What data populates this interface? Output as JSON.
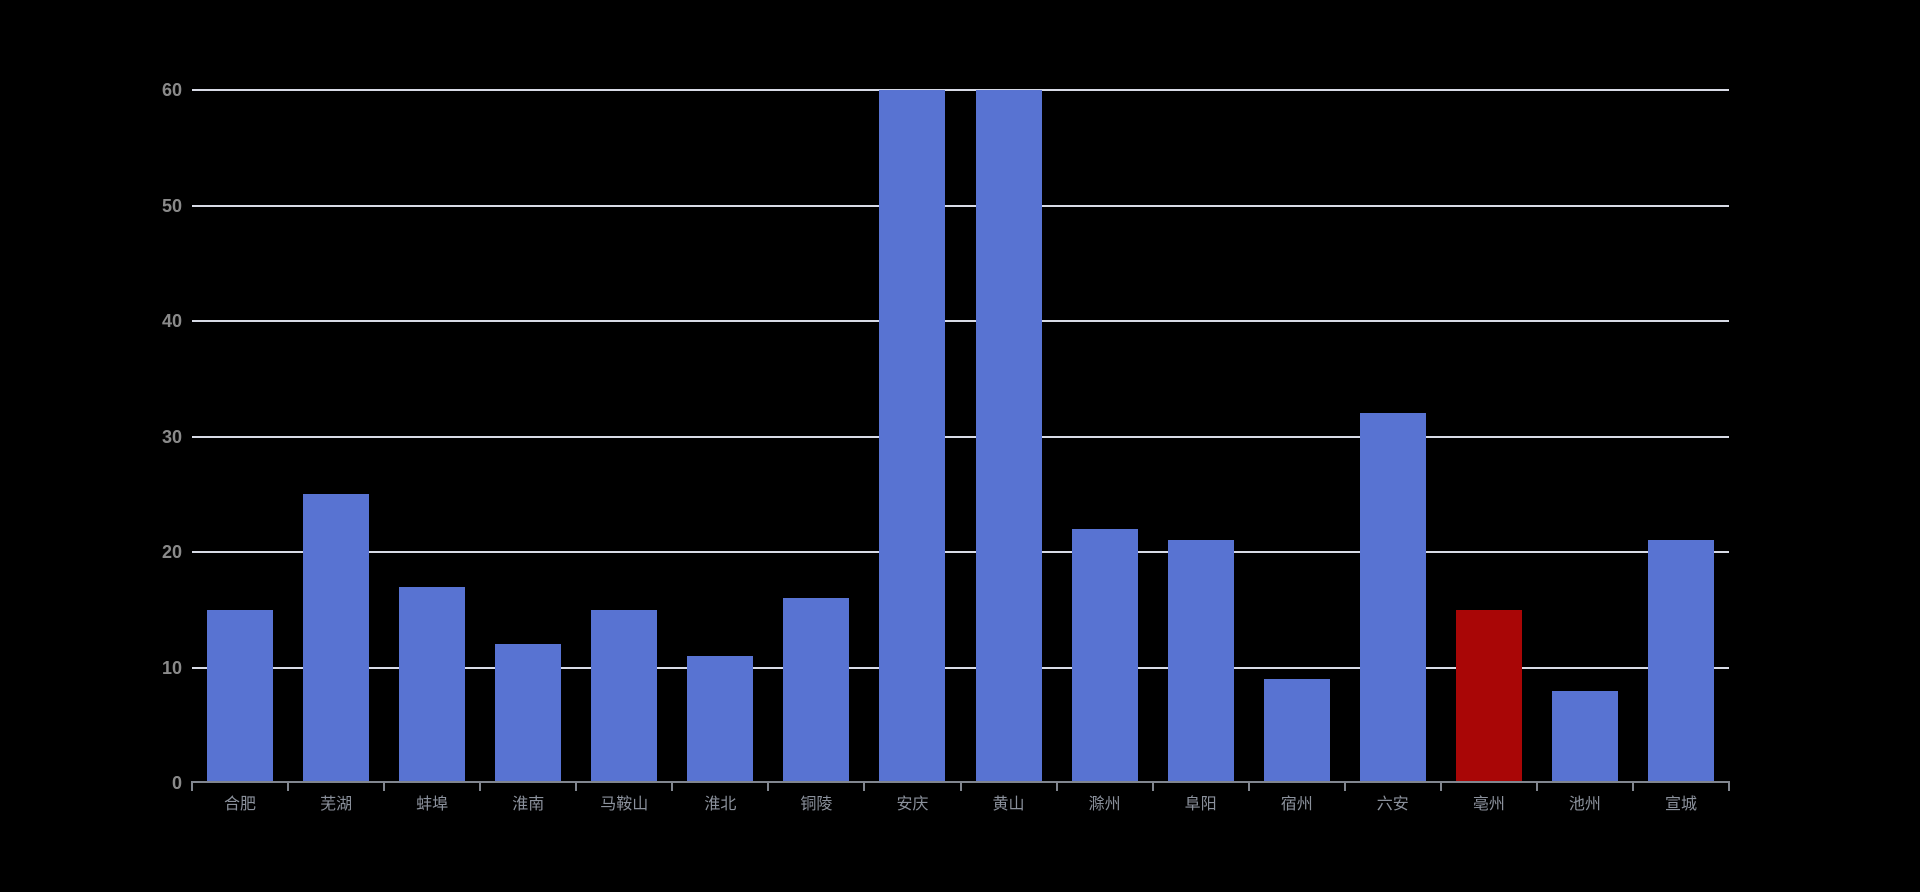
{
  "chart_data": {
    "type": "bar",
    "title": "",
    "xlabel": "",
    "ylabel": "",
    "categories": [
      "合肥",
      "芜湖",
      "蚌埠",
      "淮南",
      "马鞍山",
      "淮北",
      "铜陵",
      "安庆",
      "黄山",
      "滁州",
      "阜阳",
      "宿州",
      "六安",
      "亳州",
      "池州",
      "宣城"
    ],
    "values": [
      15,
      25,
      17,
      12,
      15,
      11,
      16,
      60,
      60,
      22,
      21,
      9,
      32,
      15,
      8,
      21
    ],
    "highlight_index": 13,
    "highlighted_category": "亳州",
    "ylim": [
      0,
      60
    ],
    "yticks": [
      0,
      10,
      20,
      30,
      40,
      50,
      60
    ],
    "grid": true,
    "legend_position": "none",
    "colors": {
      "background": "#000000",
      "bar": "#5873d2",
      "highlight": "#a90606",
      "gridline": "#d8dbe6",
      "axis_line": "#81868f",
      "y_tick_label": "#8a8a8a",
      "x_tick_label": "#8b919c"
    }
  }
}
